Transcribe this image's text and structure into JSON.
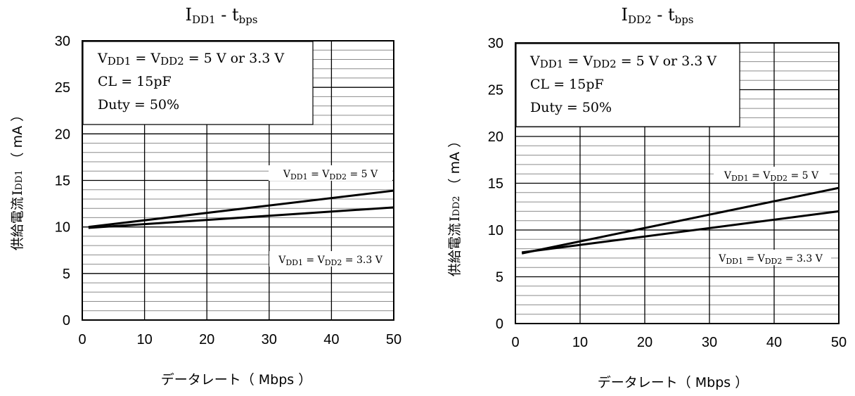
{
  "chart_data": [
    {
      "type": "line",
      "title": {
        "main": "I",
        "sub1": "DD1",
        "mid": " - t",
        "sub2": "bps"
      },
      "ylabel": {
        "jp": "供給電流",
        "sym": "I",
        "sub": "DD1",
        "unit": "（ mA ）"
      },
      "xlabel": {
        "jp": "データレート",
        "unit": "（ Mbps ）"
      },
      "xlim": [
        0,
        50
      ],
      "ylim": [
        0,
        30
      ],
      "x_ticks": [
        "0",
        "10",
        "20",
        "30",
        "40",
        "50"
      ],
      "y_ticks": [
        "0",
        "5",
        "10",
        "15",
        "20",
        "25",
        "30"
      ],
      "minor_grid_step": 1,
      "conditions": {
        "line1": {
          "a": "V",
          "a_sub": "DD1",
          "b": " = V",
          "b_sub": "DD2",
          "c": " = 5 V or 3.3 V"
        },
        "line2": "CL = 15pF",
        "line3": "Duty = 50%"
      },
      "series": [
        {
          "label": {
            "a": "V",
            "a_sub": "DD1",
            "b": " = V",
            "b_sub": "DD2",
            "c": " = 5 V"
          },
          "x": [
            1,
            50
          ],
          "y": [
            10.0,
            13.9
          ]
        },
        {
          "label": {
            "a": "V",
            "a_sub": "DD1",
            "b": " = V",
            "b_sub": "DD2",
            "c": " = 3.3 V"
          },
          "x": [
            1,
            50
          ],
          "y": [
            9.9,
            12.1
          ]
        }
      ]
    },
    {
      "type": "line",
      "title": {
        "main": "I",
        "sub1": "DD2",
        "mid": " - t",
        "sub2": "bps"
      },
      "ylabel": {
        "jp": "供給電流",
        "sym": "I",
        "sub": "DD2",
        "unit": "（ mA ）"
      },
      "xlabel": {
        "jp": "データレート",
        "unit": "（ Mbps ）"
      },
      "xlim": [
        0,
        50
      ],
      "ylim": [
        0,
        30
      ],
      "x_ticks": [
        "0",
        "10",
        "20",
        "30",
        "40",
        "50"
      ],
      "y_ticks": [
        "0",
        "5",
        "10",
        "15",
        "20",
        "25",
        "30"
      ],
      "minor_grid_step": 1,
      "conditions": {
        "line1": {
          "a": "V",
          "a_sub": "DD1",
          "b": " = V",
          "b_sub": "DD2",
          "c": " = 5 V or 3.3 V"
        },
        "line2": "CL = 15pF",
        "line3": "Duty = 50%"
      },
      "series": [
        {
          "label": {
            "a": "V",
            "a_sub": "DD1",
            "b": " = V",
            "b_sub": "DD2",
            "c": " = 5 V"
          },
          "x": [
            1,
            50
          ],
          "y": [
            7.5,
            14.5
          ]
        },
        {
          "label": {
            "a": "V",
            "a_sub": "DD1",
            "b": " = V",
            "b_sub": "DD2",
            "c": " = 3.3 V"
          },
          "x": [
            1,
            50
          ],
          "y": [
            7.6,
            12.0
          ]
        }
      ]
    }
  ]
}
